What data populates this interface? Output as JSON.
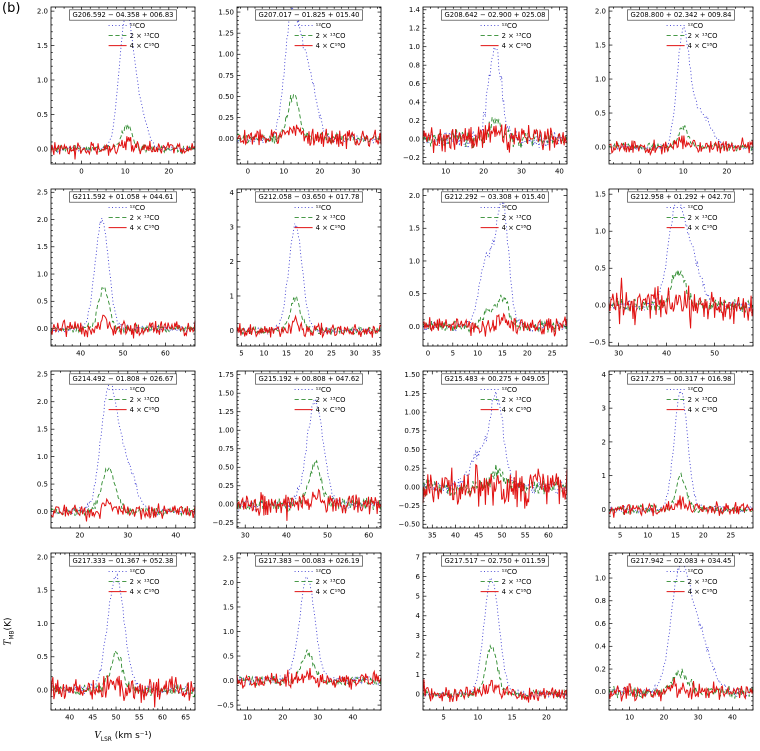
{
  "figure_label": "(b)",
  "axis": {
    "y_main": "T",
    "y_sub": "MB",
    "y_unit": "(K)",
    "x_main": "V",
    "x_sub": "LSR",
    "x_unit": "(km s⁻¹)"
  },
  "legend": [
    {
      "label": "¹²CO",
      "color": "#3b3bd1",
      "style": "dotted"
    },
    {
      "label": "2 × ¹³CO",
      "color": "#2e8b2e",
      "style": "dashed"
    },
    {
      "label": "4 × C¹⁸O",
      "color": "#e11212",
      "style": "solid"
    }
  ],
  "chart_data": {
    "type": "line",
    "xlabel": "V_LSR (km s⁻¹)",
    "ylabel": "T_MB (K)",
    "grid": false,
    "legend_position": "top-inside",
    "panels": [
      {
        "title": "G206.592 − 04.358 + 006.83",
        "xlim": [
          -7,
          26
        ],
        "ylim": [
          -0.22,
          2.06
        ],
        "xticks": [
          0,
          10,
          20
        ],
        "yticks": [
          0,
          0.5,
          1,
          1.5,
          2
        ],
        "series": [
          {
            "name": "12CO",
            "peaks": [
              [
                10,
                1.58,
                1.5
              ],
              [
                12.3,
                0.75,
                2.0
              ]
            ],
            "noise": 0.022
          },
          {
            "name": "13CO",
            "peaks": [
              [
                10.4,
                0.33,
                1.2
              ]
            ],
            "noise": 0.03
          },
          {
            "name": "C18O",
            "peaks": [
              [
                10.4,
                0.09,
                1.1
              ]
            ],
            "noise": 0.05
          }
        ]
      },
      {
        "title": "G207.017 − 01.825 + 015.40",
        "xlim": [
          -3,
          37
        ],
        "ylim": [
          -0.3,
          1.56
        ],
        "xticks": [
          0,
          10,
          20,
          30
        ],
        "yticks": [
          0,
          0.25,
          0.5,
          0.75,
          1,
          1.25,
          1.5
        ],
        "series": [
          {
            "name": "12CO",
            "peaks": [
              [
                12,
                1.22,
                1.9
              ],
              [
                16,
                0.9,
                2.6
              ]
            ],
            "noise": 0.028
          },
          {
            "name": "13CO",
            "peaks": [
              [
                12.6,
                0.5,
                1.6
              ]
            ],
            "noise": 0.035
          },
          {
            "name": "C18O",
            "peaks": [
              [
                12.6,
                0.12,
                1.4
              ]
            ],
            "noise": 0.06
          }
        ]
      },
      {
        "title": "G208.642 − 02.900 + 025.08",
        "xlim": [
          4,
          42
        ],
        "ylim": [
          -0.27,
          1.43
        ],
        "xticks": [
          10,
          20,
          30,
          40
        ],
        "yticks": [
          -0.2,
          0,
          0.2,
          0.4,
          0.6,
          0.8,
          1.0,
          1.2,
          1.4
        ],
        "series": [
          {
            "name": "12CO",
            "peaks": [
              [
                23,
                1.0,
                1.7
              ]
            ],
            "noise": 0.05
          },
          {
            "name": "13CO",
            "peaks": [
              [
                23,
                0.2,
                1.5
              ]
            ],
            "noise": 0.05
          },
          {
            "name": "C18O",
            "peaks": [
              [
                23,
                0.1,
                1.4
              ]
            ],
            "noise": 0.08
          }
        ]
      },
      {
        "title": "G208.800 + 02.342 + 009.84",
        "xlim": [
          -7,
          26
        ],
        "ylim": [
          -0.25,
          2.06
        ],
        "xticks": [
          0,
          10,
          20
        ],
        "yticks": [
          0,
          0.5,
          1,
          1.5,
          2
        ],
        "series": [
          {
            "name": "12CO",
            "peaks": [
              [
                10,
                1.6,
                1.4
              ],
              [
                13.8,
                0.5,
                2.4
              ]
            ],
            "noise": 0.028
          },
          {
            "name": "13CO",
            "peaks": [
              [
                10,
                0.3,
                1.1
              ]
            ],
            "noise": 0.03
          },
          {
            "name": "C18O",
            "peaks": [
              [
                10,
                0.08,
                1.0
              ]
            ],
            "noise": 0.055
          }
        ]
      },
      {
        "title": "G211.592 + 01.058 + 044.61",
        "xlim": [
          33,
          67
        ],
        "ylim": [
          -0.32,
          2.56
        ],
        "xticks": [
          40,
          50,
          60
        ],
        "yticks": [
          0,
          0.5,
          1,
          1.5,
          2,
          2.5
        ],
        "series": [
          {
            "name": "12CO",
            "peaks": [
              [
                45,
                1.98,
                1.6
              ]
            ],
            "noise": 0.035
          },
          {
            "name": "13CO",
            "peaks": [
              [
                45.4,
                0.74,
                1.2
              ]
            ],
            "noise": 0.04
          },
          {
            "name": "C18O",
            "peaks": [
              [
                45.4,
                0.16,
                1.0
              ]
            ],
            "noise": 0.085
          }
        ]
      },
      {
        "title": "G212.058 − 03.650 + 017.78",
        "xlim": [
          4,
          36
        ],
        "ylim": [
          -0.45,
          4.1
        ],
        "xticks": [
          5,
          10,
          15,
          20,
          25,
          30,
          35
        ],
        "yticks": [
          0,
          1,
          2,
          3,
          4
        ],
        "series": [
          {
            "name": "12CO",
            "peaks": [
              [
                17,
                3.05,
                1.5
              ]
            ],
            "noise": 0.055
          },
          {
            "name": "13CO",
            "peaks": [
              [
                17,
                0.95,
                1.1
              ]
            ],
            "noise": 0.06
          },
          {
            "name": "C18O",
            "peaks": [
              [
                17,
                0.2,
                1.0
              ]
            ],
            "noise": 0.11
          }
        ]
      },
      {
        "title": "G212.292 − 03.308 + 015.40",
        "xlim": [
          -1,
          28
        ],
        "ylim": [
          -0.3,
          2.1
        ],
        "xticks": [
          0,
          5,
          10,
          15,
          20,
          25
        ],
        "yticks": [
          0,
          0.5,
          1,
          1.5,
          2
        ],
        "series": [
          {
            "name": "12CO",
            "peaks": [
              [
                11.8,
                1.0,
                1.5
              ],
              [
                15,
                1.82,
                1.25
              ]
            ],
            "noise": 0.04
          },
          {
            "name": "13CO",
            "peaks": [
              [
                12,
                0.22,
                1.0
              ],
              [
                14.9,
                0.45,
                1.2
              ]
            ],
            "noise": 0.045
          },
          {
            "name": "C18O",
            "peaks": [
              [
                15,
                0.1,
                1.0
              ]
            ],
            "noise": 0.075
          }
        ]
      },
      {
        "title": "G212.958 + 01.292 + 042.70",
        "xlim": [
          28,
          58
        ],
        "ylim": [
          -0.55,
          1.57
        ],
        "xticks": [
          30,
          40,
          50
        ],
        "yticks": [
          -0.5,
          0,
          0.5,
          1,
          1.5
        ],
        "series": [
          {
            "name": "12CO",
            "peaks": [
              [
                42,
                1.28,
                1.7
              ],
              [
                45.3,
                0.6,
                1.8
              ]
            ],
            "noise": 0.04
          },
          {
            "name": "13CO",
            "peaks": [
              [
                42.4,
                0.45,
                1.4
              ]
            ],
            "noise": 0.05
          },
          {
            "name": "C18O",
            "peaks": [
              [
                42.4,
                0.12,
                1.1
              ]
            ],
            "noise": 0.12
          }
        ]
      },
      {
        "title": "G214.492 − 01.808 + 026.67",
        "xlim": [
          14,
          44
        ],
        "ylim": [
          -0.3,
          2.56
        ],
        "xticks": [
          20,
          30,
          40
        ],
        "yticks": [
          0,
          0.5,
          1,
          1.5,
          2,
          2.5
        ],
        "series": [
          {
            "name": "12CO",
            "peaks": [
              [
                26,
                2.12,
                1.7
              ],
              [
                29.5,
                0.85,
                2.0
              ]
            ],
            "noise": 0.035
          },
          {
            "name": "13CO",
            "peaks": [
              [
                26,
                0.78,
                1.4
              ]
            ],
            "noise": 0.04
          },
          {
            "name": "C18O",
            "peaks": [
              [
                26,
                0.14,
                1.2
              ]
            ],
            "noise": 0.07
          }
        ]
      },
      {
        "title": "G215.192 + 00.808 + 047.62",
        "xlim": [
          28,
          63
        ],
        "ylim": [
          -0.32,
          1.8
        ],
        "xticks": [
          30,
          40,
          50,
          60
        ],
        "yticks": [
          -0.25,
          0,
          0.25,
          0.5,
          0.75,
          1,
          1.25,
          1.5,
          1.75
        ],
        "series": [
          {
            "name": "12CO",
            "peaks": [
              [
                47,
                1.38,
                2.0
              ]
            ],
            "noise": 0.04
          },
          {
            "name": "13CO",
            "peaks": [
              [
                47,
                0.55,
                1.5
              ]
            ],
            "noise": 0.045
          },
          {
            "name": "C18O",
            "peaks": [
              [
                47,
                0.1,
                1.2
              ]
            ],
            "noise": 0.08
          }
        ]
      },
      {
        "title": "G215.483 + 00.275 + 049.05",
        "xlim": [
          33,
          64
        ],
        "ylim": [
          -0.55,
          1.55
        ],
        "xticks": [
          35,
          40,
          45,
          50,
          55,
          60
        ],
        "yticks": [
          -0.5,
          -0.25,
          0,
          0.25,
          0.5,
          0.75,
          1,
          1.25,
          1.5
        ],
        "series": [
          {
            "name": "12CO",
            "peaks": [
              [
                49,
                1.02,
                1.4
              ],
              [
                45.8,
                0.5,
                2.2
              ]
            ],
            "noise": 0.05
          },
          {
            "name": "13CO",
            "peaks": [
              [
                49,
                0.2,
                1.2
              ]
            ],
            "noise": 0.06
          },
          {
            "name": "C18O",
            "peaks": [
              [
                49,
                0.08,
                1.0
              ]
            ],
            "noise": 0.15
          }
        ]
      },
      {
        "title": "G217.275 − 00.317 + 016.98",
        "xlim": [
          3,
          29
        ],
        "ylim": [
          -0.55,
          4.1
        ],
        "xticks": [
          5,
          10,
          15,
          20,
          25
        ],
        "yticks": [
          0,
          1,
          2,
          3,
          4
        ],
        "series": [
          {
            "name": "12CO",
            "peaks": [
              [
                16,
                3.55,
                1.2
              ]
            ],
            "noise": 0.06
          },
          {
            "name": "13CO",
            "peaks": [
              [
                16,
                1.0,
                0.9
              ]
            ],
            "noise": 0.07
          },
          {
            "name": "C18O",
            "peaks": [
              [
                16,
                0.25,
                0.8
              ]
            ],
            "noise": 0.12
          }
        ]
      },
      {
        "title": "G217.333 − 01.367 + 052.38",
        "xlim": [
          36,
          67
        ],
        "ylim": [
          -0.3,
          2.06
        ],
        "xticks": [
          40,
          45,
          50,
          55,
          60,
          65
        ],
        "yticks": [
          0,
          0.5,
          1,
          1.5,
          2
        ],
        "series": [
          {
            "name": "12CO",
            "peaks": [
              [
                50,
                1.72,
                1.8
              ]
            ],
            "noise": 0.04
          },
          {
            "name": "13CO",
            "peaks": [
              [
                50,
                0.55,
                1.3
              ]
            ],
            "noise": 0.05
          },
          {
            "name": "C18O",
            "peaks": [
              [
                50,
                0.12,
                1.1
              ]
            ],
            "noise": 0.1
          }
        ]
      },
      {
        "title": "G217.383 − 00.083 + 026.19",
        "xlim": [
          7,
          48
        ],
        "ylim": [
          -0.6,
          2.6
        ],
        "xticks": [
          10,
          20,
          30,
          40
        ],
        "yticks": [
          -0.5,
          0,
          0.5,
          1,
          1.5,
          2,
          2.5
        ],
        "series": [
          {
            "name": "12CO",
            "peaks": [
              [
                27,
                2.1,
                2.2
              ]
            ],
            "noise": 0.05
          },
          {
            "name": "13CO",
            "peaks": [
              [
                27,
                0.58,
                1.6
              ]
            ],
            "noise": 0.055
          },
          {
            "name": "C18O",
            "peaks": [
              [
                27,
                0.12,
                1.3
              ]
            ],
            "noise": 0.085
          }
        ]
      },
      {
        "title": "G217.517 − 02.750 + 011.59",
        "xlim": [
          2,
          23
        ],
        "ylim": [
          -0.8,
          7.2
        ],
        "xticks": [
          5,
          10,
          15,
          20
        ],
        "yticks": [
          0,
          1,
          2,
          3,
          4,
          5,
          6,
          7
        ],
        "series": [
          {
            "name": "12CO",
            "peaks": [
              [
                12,
                5.9,
                1.1
              ]
            ],
            "noise": 0.09
          },
          {
            "name": "13CO",
            "peaks": [
              [
                12,
                2.4,
                0.85
              ]
            ],
            "noise": 0.1
          },
          {
            "name": "C18O",
            "peaks": [
              [
                12,
                0.5,
                0.8
              ]
            ],
            "noise": 0.2
          }
        ]
      },
      {
        "title": "G217.942 − 02.083 + 034.45",
        "xlim": [
          4,
          46
        ],
        "ylim": [
          -0.16,
          1.22
        ],
        "xticks": [
          10,
          20,
          30,
          40
        ],
        "yticks": [
          0,
          0.2,
          0.4,
          0.6,
          0.8,
          1.0
        ],
        "series": [
          {
            "name": "12CO",
            "peaks": [
              [
                24.5,
                0.92,
                2.6
              ],
              [
                29.5,
                0.55,
                3.5
              ]
            ],
            "noise": 0.022
          },
          {
            "name": "13CO",
            "peaks": [
              [
                25,
                0.17,
                2.2
              ]
            ],
            "noise": 0.028
          },
          {
            "name": "C18O",
            "peaks": [
              [
                25,
                0.05,
                2.0
              ]
            ],
            "noise": 0.045
          }
        ]
      }
    ]
  }
}
